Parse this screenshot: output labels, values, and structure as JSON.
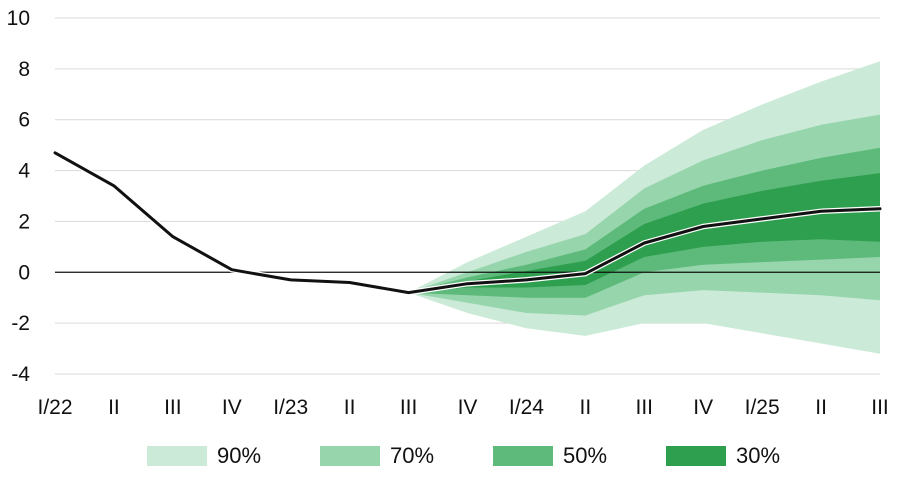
{
  "chart_data": {
    "type": "area",
    "title": "",
    "xlabel": "",
    "ylabel": "",
    "ylim": [
      -4,
      10
    ],
    "yticks": [
      10,
      8,
      6,
      4,
      2,
      0,
      -2,
      -4
    ],
    "grid": true,
    "legend_placement": "bottom",
    "categories": [
      "I/22",
      "II",
      "III",
      "IV",
      "I/23",
      "II",
      "III",
      "IV",
      "I/24",
      "II",
      "III",
      "IV",
      "I/25",
      "II",
      "III"
    ],
    "central_series": {
      "values": [
        4.7,
        3.4,
        1.4,
        0.1,
        -0.3,
        -0.4,
        -0.8,
        -0.45,
        -0.3,
        -0.05,
        1.15,
        1.8,
        2.1,
        2.4,
        2.5
      ]
    },
    "fan_start_index": 6,
    "bands": [
      {
        "name": "90%",
        "color": "#cbead7",
        "upper": [
          -0.8,
          0.4,
          1.4,
          2.4,
          4.2,
          5.6,
          6.6,
          7.5,
          8.3
        ],
        "lower": [
          -0.8,
          -1.6,
          -2.2,
          -2.5,
          -2.0,
          -2.0,
          -2.4,
          -2.8,
          -3.2
        ]
      },
      {
        "name": "70%",
        "color": "#97d5ad",
        "upper": [
          -0.8,
          0.0,
          0.8,
          1.5,
          3.3,
          4.4,
          5.2,
          5.8,
          6.2
        ],
        "lower": [
          -0.8,
          -1.2,
          -1.6,
          -1.7,
          -0.9,
          -0.7,
          -0.8,
          -0.9,
          -1.1
        ]
      },
      {
        "name": "50%",
        "color": "#5eba7b",
        "upper": [
          -0.8,
          -0.2,
          0.3,
          0.9,
          2.5,
          3.4,
          4.0,
          4.5,
          4.9
        ],
        "lower": [
          -0.8,
          -0.9,
          -1.0,
          -1.0,
          0.0,
          0.3,
          0.4,
          0.5,
          0.6
        ]
      },
      {
        "name": "30%",
        "color": "#2e9f4e",
        "upper": [
          -0.8,
          -0.35,
          0.05,
          0.45,
          1.9,
          2.7,
          3.2,
          3.6,
          3.9
        ],
        "lower": [
          -0.8,
          -0.6,
          -0.6,
          -0.5,
          0.6,
          1.0,
          1.2,
          1.3,
          1.2
        ]
      }
    ],
    "legend": [
      "90%",
      "70%",
      "50%",
      "30%"
    ],
    "colors": {
      "line": "#111111",
      "zero_line": "#111111",
      "grid": "#d9d9d9"
    }
  }
}
